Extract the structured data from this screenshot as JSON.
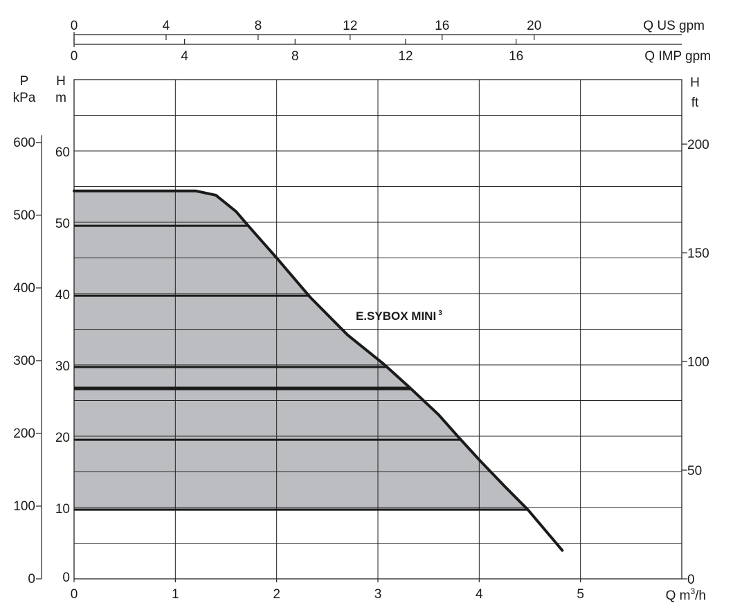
{
  "chart_data": {
    "type": "line",
    "x_axis": {
      "label_prefix": "Q m",
      "label_sup": "3",
      "label_suffix": "/h",
      "min": 0,
      "max": 6,
      "ticks": [
        0,
        1,
        2,
        3,
        4,
        5
      ]
    },
    "y_axis_m": {
      "label_line1": "H",
      "label_line2": "m",
      "min": 0,
      "max": 70,
      "ticks": [
        0,
        10,
        20,
        30,
        40,
        50,
        60
      ]
    },
    "y_axis_kpa": {
      "label_line1": "P",
      "label_line2": "kPa",
      "ticks": [
        0,
        100,
        200,
        300,
        400,
        500,
        600
      ]
    },
    "y_axis_ft": {
      "label_line1": "H",
      "label_line2": "ft",
      "ticks": [
        0,
        50,
        100,
        150,
        200
      ]
    },
    "top_axis_us_gpm": {
      "label": "Q US gpm",
      "ticks": [
        0,
        4,
        8,
        12,
        16,
        20
      ]
    },
    "top_axis_imp_gpm": {
      "label": "Q IMP gpm",
      "ticks": [
        0,
        4,
        8,
        12,
        16
      ]
    },
    "series": [
      {
        "name_main": "E.SYBOX MINI",
        "name_sup": "3",
        "x": [
          0,
          1.2,
          1.4,
          1.6,
          1.72,
          2.0,
          2.33,
          2.7,
          3.05,
          3.3,
          3.6,
          3.8,
          4.0,
          4.25,
          4.48,
          4.82
        ],
        "y": [
          54.4,
          54.4,
          53.8,
          51.5,
          49.5,
          45.0,
          39.5,
          34.2,
          30.2,
          27.0,
          23.0,
          19.8,
          16.7,
          13.0,
          9.7,
          4.0
        ]
      }
    ],
    "pressure_setpoints_m": [
      49.5,
      39.7,
      29.7,
      26.7,
      19.5,
      9.7
    ],
    "gridlines": true
  }
}
